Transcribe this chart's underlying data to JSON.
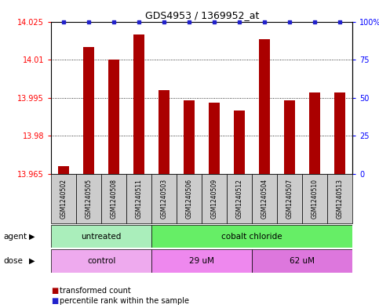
{
  "title": "GDS4953 / 1369952_at",
  "samples": [
    "GSM1240502",
    "GSM1240505",
    "GSM1240508",
    "GSM1240511",
    "GSM1240503",
    "GSM1240506",
    "GSM1240509",
    "GSM1240512",
    "GSM1240504",
    "GSM1240507",
    "GSM1240510",
    "GSM1240513"
  ],
  "transformed_counts": [
    13.968,
    14.015,
    14.01,
    14.02,
    13.998,
    13.994,
    13.993,
    13.99,
    14.018,
    13.994,
    13.997,
    13.997
  ],
  "percentile_ranks": [
    100,
    100,
    100,
    100,
    100,
    100,
    100,
    100,
    100,
    100,
    100,
    100
  ],
  "y_min": 13.965,
  "y_max": 14.025,
  "y_ticks": [
    13.965,
    13.98,
    13.995,
    14.01,
    14.025
  ],
  "y_right_ticks": [
    0,
    25,
    50,
    75,
    100
  ],
  "bar_color": "#aa0000",
  "dot_color": "#2222cc",
  "agent_groups": [
    {
      "label": "untreated",
      "start": 0,
      "end": 4,
      "color": "#aaeebb"
    },
    {
      "label": "cobalt chloride",
      "start": 4,
      "end": 12,
      "color": "#66ee66"
    }
  ],
  "dose_groups": [
    {
      "label": "control",
      "start": 0,
      "end": 4,
      "color": "#eeaaee"
    },
    {
      "label": "29 uM",
      "start": 4,
      "end": 8,
      "color": "#ee88ee"
    },
    {
      "label": "62 uM",
      "start": 8,
      "end": 12,
      "color": "#dd77dd"
    }
  ],
  "sample_bg_color": "#cccccc",
  "legend_red_label": "transformed count",
  "legend_blue_label": "percentile rank within the sample",
  "agent_label": "agent",
  "dose_label": "dose",
  "fig_width": 4.83,
  "fig_height": 3.93,
  "dpi": 100
}
